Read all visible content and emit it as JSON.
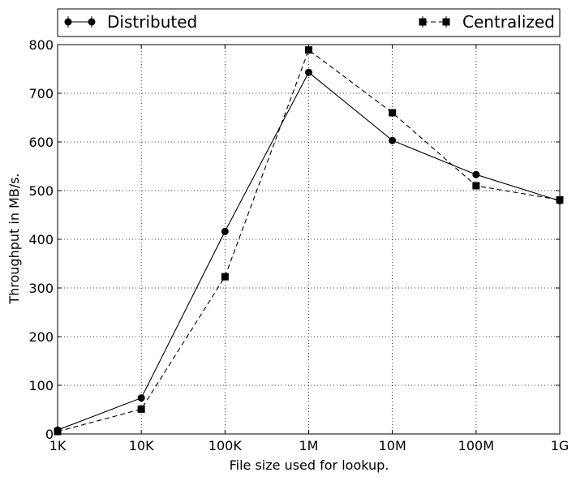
{
  "chart_data": {
    "type": "line",
    "x_scale": "log",
    "categories": [
      "1K",
      "10K",
      "100K",
      "1M",
      "10M",
      "100M",
      "1G"
    ],
    "xlabel": "File size used for lookup.",
    "ylabel": "Throughput in MB/s.",
    "ylim": [
      0,
      800
    ],
    "yticks": [
      "0",
      "100",
      "200",
      "300",
      "400",
      "500",
      "600",
      "700",
      "800"
    ],
    "grid": true,
    "legend_position": "top (above plot)",
    "series": [
      {
        "name": "Distributed",
        "marker": "circle",
        "linestyle": "solid",
        "values": [
          8,
          74,
          416,
          743,
          603,
          533,
          479
        ]
      },
      {
        "name": "Centralized",
        "marker": "square",
        "linestyle": "dashed",
        "values": [
          5,
          51,
          323,
          789,
          660,
          510,
          481
        ]
      }
    ]
  }
}
